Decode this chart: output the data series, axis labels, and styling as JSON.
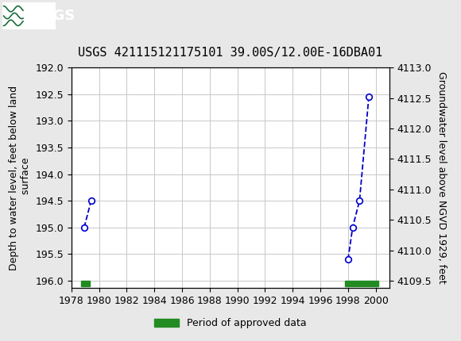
{
  "title": "USGS 421115121175101 39.00S/12.00E-16DBA01",
  "ylabel_left": "Depth to water level, feet below land\n surface",
  "ylabel_right": "Groundwater level above NGVD 1929, feet",
  "ylim_left": [
    192.0,
    196.0
  ],
  "ylim_right": [
    4109.5,
    4113.0
  ],
  "xlim": [
    1978,
    2001
  ],
  "xticks": [
    1978,
    1980,
    1982,
    1984,
    1986,
    1988,
    1990,
    1992,
    1994,
    1996,
    1998,
    2000
  ],
  "yticks_left": [
    192.0,
    192.5,
    193.0,
    193.5,
    194.0,
    194.5,
    195.0,
    195.5,
    196.0
  ],
  "yticks_right": [
    4109.5,
    4110.0,
    4110.5,
    4111.0,
    4111.5,
    4112.0,
    4112.5,
    4113.0
  ],
  "segments": [
    {
      "x": [
        1978.92,
        1979.42
      ],
      "y": [
        195.0,
        194.5
      ]
    },
    {
      "x": [
        1998.0,
        1998.33,
        1998.83,
        1999.5
      ],
      "y": [
        195.6,
        195.0,
        194.5,
        192.55
      ]
    }
  ],
  "approved_bars": [
    {
      "x_start": 1978.7,
      "x_end": 1979.35
    },
    {
      "x_start": 1997.8,
      "x_end": 2000.2
    }
  ],
  "bar_color": "#228B22",
  "line_color": "#0000CC",
  "marker_color": "#0000CC",
  "marker_facecolor": "white",
  "grid_color": "#C8C8C8",
  "header_bg": "#1A6B3C",
  "bg_color": "#E8E8E8",
  "plot_bg": "white",
  "legend_label": "Period of approved data",
  "font_name": "DejaVu Sans",
  "title_fontsize": 11,
  "tick_fontsize": 9,
  "label_fontsize": 9
}
